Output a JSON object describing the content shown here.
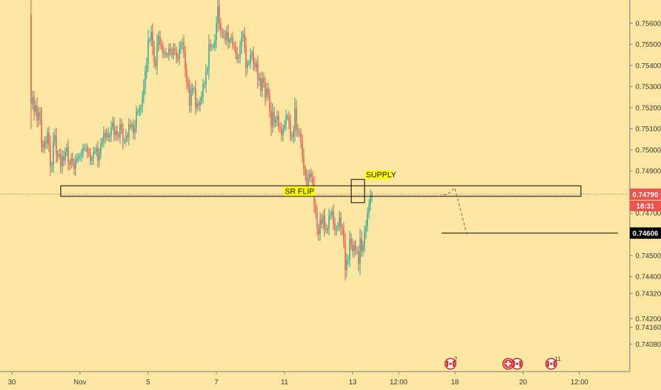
{
  "chart_data": {
    "type": "candlestick",
    "xlabel": "",
    "ylabel": "",
    "ylim": [
      0.7395,
      0.7571
    ],
    "grid": false,
    "colors": {
      "background": "#fbe6a2",
      "up": "#26a69a",
      "down": "#ef5350",
      "price_line": "#ef5350",
      "price_tag": "#ef5350",
      "level_tag": "#000000",
      "label_highlight": "#ffff00",
      "box_stroke": "#000000",
      "projection": "#666666"
    },
    "x_ticks": [
      {
        "label": "30",
        "x": 0
      },
      {
        "label": "Nov",
        "x": 46
      },
      {
        "label": "5",
        "x": 92
      },
      {
        "label": "7",
        "x": 138
      },
      {
        "label": "11",
        "x": 184
      },
      {
        "label": "13",
        "x": 230
      },
      {
        "label": "12:00",
        "x": 261
      },
      {
        "label": "18",
        "x": 299
      },
      {
        "label": "20",
        "x": 345
      },
      {
        "label": "12:00",
        "x": 383
      }
    ],
    "x_range": [
      -8,
      417
    ],
    "y_ticks": [
      "0.75600",
      "0.75500",
      "0.75400",
      "0.75300",
      "0.75200",
      "0.75100",
      "0.75000",
      "0.74900",
      "0.74700",
      "0.74500",
      "0.74400",
      "0.74320",
      "0.74200",
      "0.74160",
      "0.74080"
    ],
    "candles": {
      "x_start": 12,
      "x_step": 1,
      "close": [
        0.7564,
        0.7522,
        0.7525,
        0.7518,
        0.7521,
        0.7514,
        0.7518,
        0.7515,
        0.7503,
        0.7501,
        0.7504,
        0.7503,
        0.7508,
        0.7502,
        0.7492,
        0.7493,
        0.7504,
        0.7507,
        0.7498,
        0.7497,
        0.7498,
        0.7492,
        0.7497,
        0.7495,
        0.7499,
        0.7501,
        0.7494,
        0.7493,
        0.7496,
        0.7494,
        0.7491,
        0.7495,
        0.7496,
        0.7497,
        0.7497,
        0.7498,
        0.7501,
        0.7501,
        0.7501,
        0.7499,
        0.7498,
        0.7495,
        0.7496,
        0.7499,
        0.7499,
        0.7501,
        0.7495,
        0.7498,
        0.7503,
        0.7504,
        0.7508,
        0.7506,
        0.7508,
        0.7506,
        0.7507,
        0.7511,
        0.7513,
        0.7507,
        0.7509,
        0.7507,
        0.7506,
        0.7512,
        0.751,
        0.7504,
        0.7504,
        0.7507,
        0.7506,
        0.7512,
        0.7511,
        0.7512,
        0.7508,
        0.7511,
        0.7518,
        0.7518,
        0.7519,
        0.752,
        0.7525,
        0.753,
        0.7537,
        0.7541,
        0.7552,
        0.7552,
        0.7556,
        0.7549,
        0.7542,
        0.754,
        0.755,
        0.7554,
        0.755,
        0.7549,
        0.7546,
        0.7546,
        0.7545,
        0.7545,
        0.7548,
        0.7547,
        0.7545,
        0.7548,
        0.7547,
        0.7544,
        0.7543,
        0.7548,
        0.755,
        0.7551,
        0.7546,
        0.7538,
        0.7532,
        0.753,
        0.7521,
        0.7528,
        0.7529,
        0.7529,
        0.752,
        0.7522,
        0.7521,
        0.7523,
        0.7525,
        0.7531,
        0.7531,
        0.7537,
        0.7538,
        0.755,
        0.7549,
        0.7549,
        0.7549,
        0.7552,
        0.756,
        0.7568,
        0.756,
        0.7556,
        0.7555,
        0.7555,
        0.7552,
        0.7556,
        0.7551,
        0.7552,
        0.7553,
        0.755,
        0.7549,
        0.7546,
        0.7543,
        0.7544,
        0.7549,
        0.7553,
        0.7555,
        0.7549,
        0.7539,
        0.7541,
        0.7541,
        0.7545,
        0.7546,
        0.7541,
        0.7539,
        0.7541,
        0.7533,
        0.7534,
        0.7528,
        0.7534,
        0.7532,
        0.7525,
        0.7529,
        0.7526,
        0.7519,
        0.7511,
        0.7518,
        0.7513,
        0.7514,
        0.7516,
        0.7511,
        0.751,
        0.7507,
        0.751,
        0.7512,
        0.7516,
        0.7516,
        0.7513,
        0.7507,
        0.7506,
        0.7509,
        0.752,
        0.751,
        0.7508,
        0.7508,
        0.7504,
        0.7497,
        0.7491,
        0.7488,
        0.7483,
        0.7487,
        0.7489,
        0.7487,
        0.7484,
        0.7474,
        0.747,
        0.7463,
        0.746,
        0.7467,
        0.7465,
        0.7469,
        0.7463,
        0.7462,
        0.7463,
        0.7469,
        0.7469,
        0.7471,
        0.7465,
        0.7462,
        0.7463,
        0.7464,
        0.7468,
        0.7463,
        0.7462,
        0.7456,
        0.7443,
        0.7448,
        0.7448,
        0.7458,
        0.7455,
        0.7452,
        0.7455,
        0.7452,
        0.7452,
        0.7446,
        0.7458,
        0.7452,
        0.7455,
        0.7461,
        0.7464,
        0.747,
        0.7474,
        0.7478,
        0.7479
      ]
    },
    "annotations": {
      "sr_flip_box": {
        "x": [
          33,
          384
        ],
        "y": [
          0.7483,
          0.7478
        ],
        "label": "SR FLIP"
      },
      "supply_box": {
        "x": [
          229,
          238
        ],
        "y": [
          0.7486,
          0.7475
        ],
        "label": "SUPPLY"
      },
      "support_line": {
        "x": [
          290,
          409
        ],
        "y": 0.74606
      },
      "projection": [
        [
          288,
          0.7478
        ],
        [
          294,
          0.7479
        ],
        [
          299,
          0.7482
        ],
        [
          307,
          0.746
        ]
      ]
    },
    "current_price": {
      "value": 0.7479,
      "label": "0.74790",
      "timer": "18:31"
    },
    "level_tag": {
      "value": 0.74606,
      "label": "0.74606"
    },
    "events": [
      {
        "x": 296,
        "icon": "canada-flag-icon",
        "count": "2"
      },
      {
        "x": 335,
        "icon": "switzerland-flag-icon",
        "count": ""
      },
      {
        "x": 341,
        "icon": "canada-flag-icon",
        "count": ""
      },
      {
        "x": 364,
        "icon": "canada-flag-icon",
        "count": "11"
      }
    ]
  }
}
